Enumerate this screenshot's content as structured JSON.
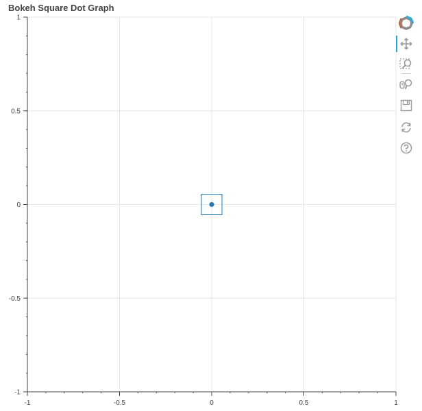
{
  "chart_data": {
    "type": "scatter",
    "title": "Bokeh Square Dot Graph",
    "xlabel": "",
    "ylabel": "",
    "xlim": [
      -1,
      1
    ],
    "ylim": [
      -1,
      1
    ],
    "x_ticks": [
      -1,
      -0.5,
      0,
      0.5,
      1
    ],
    "y_ticks": [
      -1,
      -0.5,
      0,
      0.5,
      1
    ],
    "x_tick_labels": [
      "-1",
      "-0.5",
      "0",
      "0.5",
      "1"
    ],
    "y_tick_labels": [
      "-1",
      "-0.5",
      "0",
      "0.5",
      "1"
    ],
    "grid": true,
    "marker": "square_dot",
    "points": [
      {
        "x": 0,
        "y": 0
      }
    ],
    "colors": {
      "marker": "#1f77b4",
      "grid": "#e5e5e5",
      "axis": "#444444"
    }
  },
  "toolbar": {
    "tools": [
      {
        "name": "bokeh-logo-icon"
      },
      {
        "name": "pan-icon",
        "active": true
      },
      {
        "name": "box-zoom-icon"
      },
      {
        "name": "wheel-zoom-icon"
      },
      {
        "name": "save-icon"
      },
      {
        "name": "reset-icon"
      },
      {
        "name": "help-icon"
      }
    ]
  }
}
